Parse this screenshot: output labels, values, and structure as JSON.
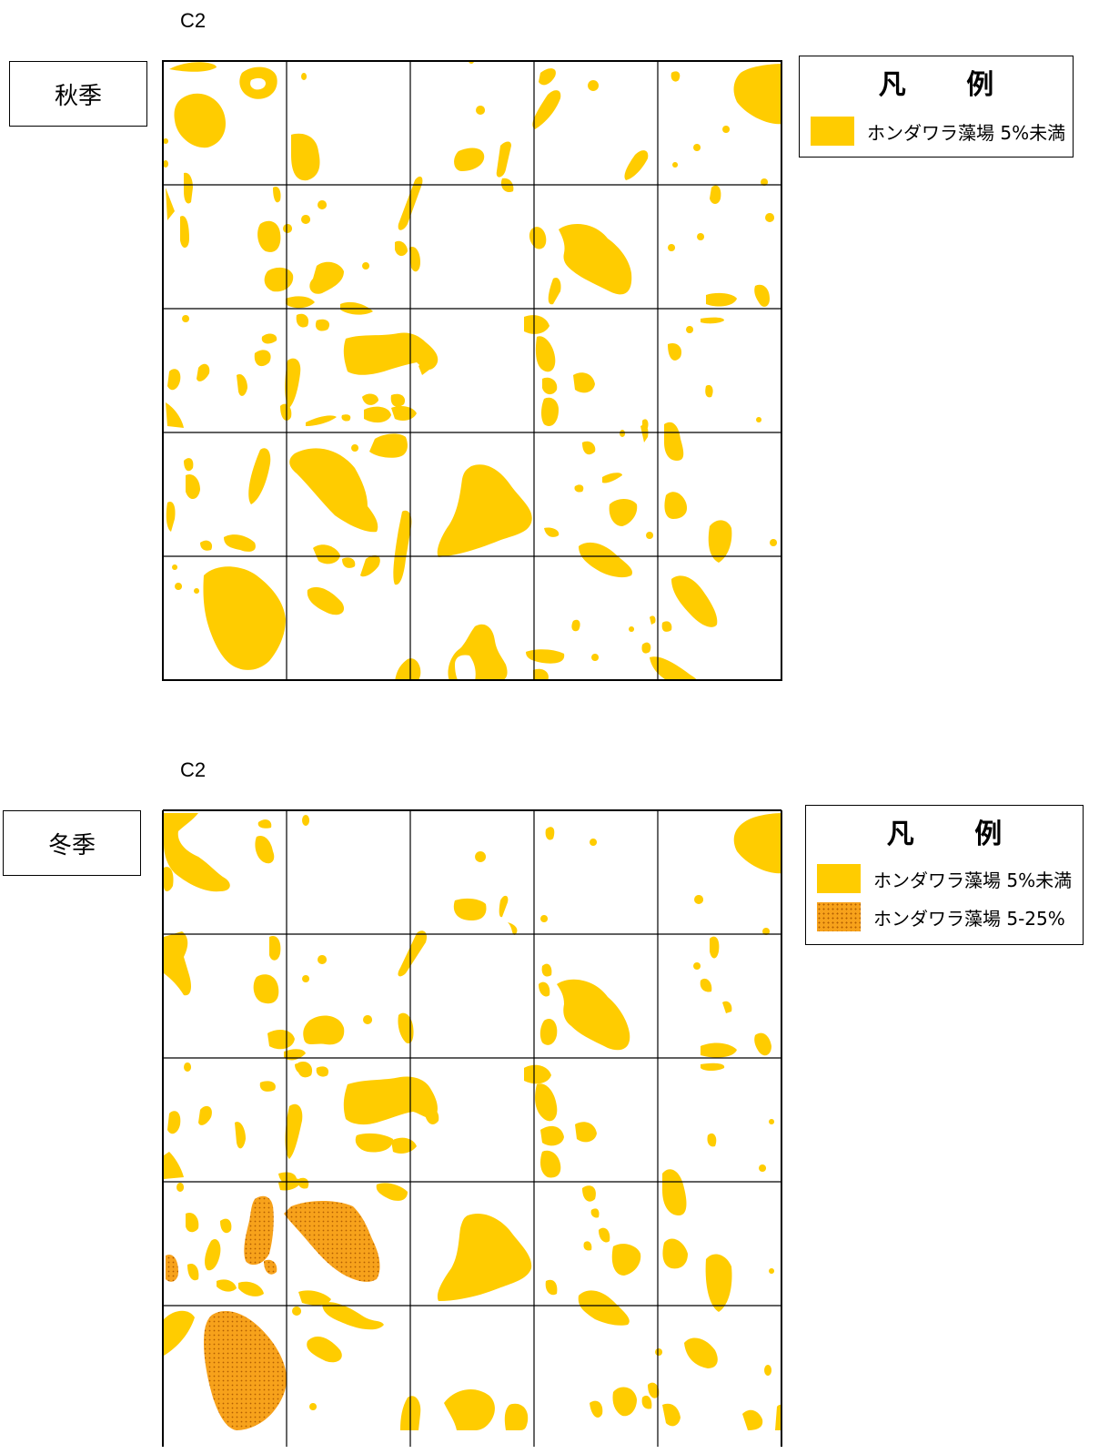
{
  "maps": [
    {
      "label": "C2",
      "season": "秋季",
      "legend": {
        "title": "凡 例",
        "items": [
          {
            "label": "ホンダワラ藻場 5%未満",
            "color": "#FFCC00",
            "pattern": "solid"
          }
        ]
      }
    },
    {
      "label": "C2",
      "season": "冬季",
      "legend": {
        "title": "凡 例",
        "items": [
          {
            "label": "ホンダワラ藻場 5%未満",
            "color": "#FFCC00",
            "pattern": "solid"
          },
          {
            "label": "ホンダワラ藻場 5-25%",
            "color": "#F7A21B",
            "pattern": "dotted"
          }
        ]
      }
    }
  ],
  "colors": {
    "low_cover": "#FFCC00",
    "mid_cover": "#F7A21B",
    "grid": "#000000"
  }
}
